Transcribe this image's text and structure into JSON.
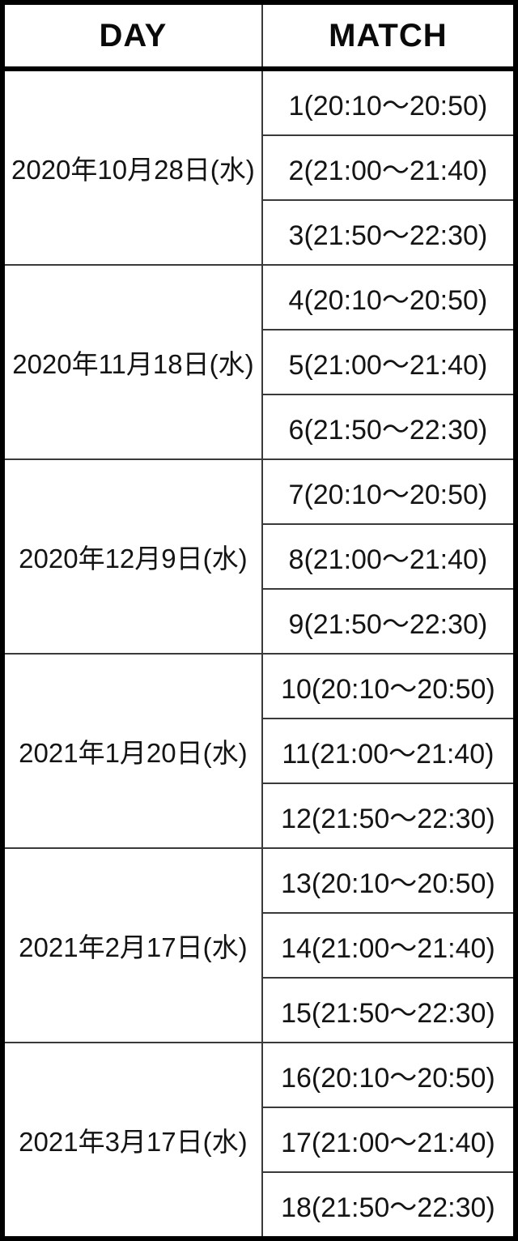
{
  "header": {
    "day_label": "DAY",
    "match_label": "MATCH"
  },
  "colors": {
    "border_thick": "#000000",
    "border_thin": "#3a3a3a",
    "text": "#141414",
    "background": "#ffffff"
  },
  "schedule": [
    {
      "day": "2020年10月28日(水)",
      "matches": [
        "1(20:10〜20:50)",
        "2(21:00〜21:40)",
        "3(21:50〜22:30)"
      ]
    },
    {
      "day": "2020年11月18日(水)",
      "matches": [
        "4(20:10〜20:50)",
        "5(21:00〜21:40)",
        "6(21:50〜22:30)"
      ]
    },
    {
      "day": "2020年12月9日(水)",
      "matches": [
        "7(20:10〜20:50)",
        "8(21:00〜21:40)",
        "9(21:50〜22:30)"
      ]
    },
    {
      "day": "2021年1月20日(水)",
      "matches": [
        "10(20:10〜20:50)",
        "11(21:00〜21:40)",
        "12(21:50〜22:30)"
      ]
    },
    {
      "day": "2021年2月17日(水)",
      "matches": [
        "13(20:10〜20:50)",
        "14(21:00〜21:40)",
        "15(21:50〜22:30)"
      ]
    },
    {
      "day": "2021年3月17日(水)",
      "matches": [
        "16(20:10〜20:50)",
        "17(21:00〜21:40)",
        "18(21:50〜22:30)"
      ]
    }
  ]
}
